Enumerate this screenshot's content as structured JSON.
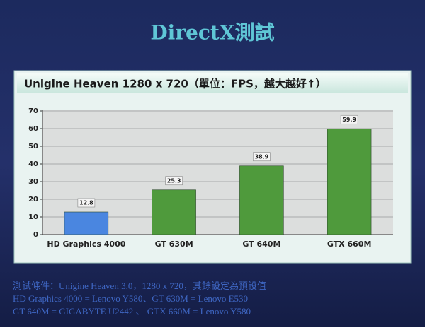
{
  "slide": {
    "title": "DirectX測試",
    "notes": [
      "測試條件：Unigine Heaven 3.0，1280 x 720，其餘設定為預設值",
      "HD Graphics 4000 = Lenovo Y580、GT 630M = Lenovo E530",
      "GT 640M = GIGABYTE U2442 、 GTX 660M = Lenovo Y580"
    ]
  },
  "chart_data": {
    "type": "bar",
    "title": "Unigine Heaven 1280 x 720（單位：FPS，越大越好↑）",
    "categories": [
      "HD Graphics 4000",
      "GT 630M",
      "GT 640M",
      "GTX 660M"
    ],
    "values": [
      12.8,
      25.3,
      38.9,
      59.9
    ],
    "colors": [
      "#4a86e0",
      "#4f9a3c",
      "#4f9a3c",
      "#4f9a3c"
    ],
    "ylim": [
      0,
      70
    ],
    "yticks": [
      0,
      10,
      20,
      30,
      40,
      50,
      60,
      70
    ],
    "grid": true
  }
}
